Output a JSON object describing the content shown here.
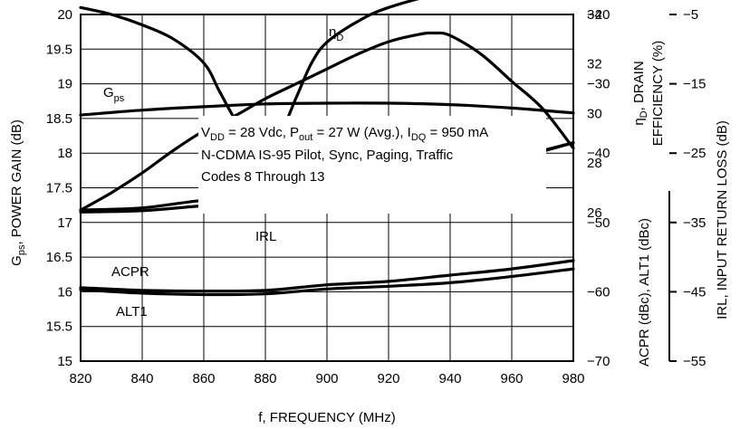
{
  "chart_data": {
    "type": "line",
    "xlabel": "f, FREQUENCY (MHz)",
    "xlim": [
      820,
      980
    ],
    "x_ticks": [
      820,
      840,
      860,
      880,
      900,
      920,
      940,
      960,
      980
    ],
    "grid": true,
    "axes": {
      "left": {
        "label_main": "G",
        "label_sub": "ps",
        "label_rest": ", POWER GAIN (dB)",
        "range": [
          15,
          20
        ],
        "ticks": [
          15,
          15.5,
          16,
          16.5,
          17,
          17.5,
          18,
          18.5,
          19,
          19.5,
          20
        ]
      },
      "right_upper": {
        "label_line1_main": "η",
        "label_line1_sub": "D",
        "label_line1_rest": ", DRAIN",
        "label_line2": "EFFICIENCY (%)",
        "range": [
          20,
          34
        ],
        "ticks": [
          26,
          28,
          30,
          32,
          34
        ]
      },
      "right_lower": {
        "label": "ACPR (dBc), ALT1 (dBc)",
        "range": [
          -70,
          -20
        ],
        "ticks": [
          -20,
          -30,
          -40,
          -50,
          -60,
          -70
        ]
      },
      "right_outer": {
        "label": "IRL, INPUT RETURN LOSS (dB)",
        "range": [
          -55,
          -5
        ],
        "ticks": [
          -5,
          -15,
          -25,
          -35,
          -45,
          -55
        ]
      }
    },
    "series": [
      {
        "name": "G",
        "name_sub": "ps",
        "axis": "left",
        "x": [
          820,
          840,
          860,
          880,
          900,
          920,
          940,
          960,
          980
        ],
        "y": [
          18.55,
          18.62,
          18.67,
          18.71,
          18.72,
          18.72,
          18.7,
          18.65,
          18.58
        ]
      },
      {
        "name": "η",
        "name_sub": "D",
        "axis": "right_upper",
        "x": [
          820,
          830,
          840,
          850,
          860,
          870,
          880,
          890,
          900,
          910,
          920,
          930,
          935,
          940,
          950,
          960,
          970,
          980
        ],
        "y": [
          26.1,
          26.8,
          27.6,
          28.5,
          29.3,
          29.9,
          30.6,
          31.2,
          31.8,
          32.4,
          32.9,
          33.2,
          33.25,
          33.15,
          32.4,
          31.3,
          30.2,
          28.6
        ]
      },
      {
        "name": "IRL",
        "axis": "right_lower",
        "x": [
          820,
          830,
          840,
          850,
          860,
          865,
          870,
          875,
          880,
          885,
          890,
          895,
          900,
          910,
          920,
          940,
          960,
          980
        ],
        "y": [
          -19.0,
          -20.0,
          -21.5,
          -23.5,
          -27.0,
          -31.0,
          -35.0,
          -37.8,
          -38.8,
          -37.0,
          -32.0,
          -27.0,
          -24.0,
          -21.0,
          -19.0,
          -16.6,
          -15.0,
          -14.5
        ]
      },
      {
        "name": "ACPR",
        "axis": "right_lower",
        "x": [
          820,
          840,
          860,
          880,
          900,
          920,
          940,
          960,
          980
        ],
        "y": [
          -48.5,
          -48.3,
          -47.6,
          -47.2,
          -46.5,
          -44.8,
          -42.9,
          -40.9,
          -38.5
        ]
      },
      {
        "name": "ACPR",
        "axis": "right_lower",
        "x": [
          820,
          840,
          860,
          880,
          900,
          920,
          940,
          960,
          980
        ],
        "y": [
          -48.2,
          -47.9,
          -46.8,
          -46.4,
          -45.8,
          -44.2,
          -42.5,
          -40.7,
          -38.5
        ]
      },
      {
        "name": "ALT1",
        "axis": "right_lower",
        "x": [
          820,
          840,
          860,
          880,
          900,
          920,
          940,
          960,
          980
        ],
        "y": [
          -59.4,
          -59.8,
          -59.9,
          -59.8,
          -59.0,
          -58.5,
          -57.6,
          -56.7,
          -55.5
        ]
      },
      {
        "name": "ALT1",
        "axis": "right_lower",
        "x": [
          820,
          840,
          860,
          880,
          900,
          920,
          940,
          960,
          980
        ],
        "y": [
          -59.7,
          -60.2,
          -60.4,
          -60.3,
          -59.6,
          -59.2,
          -58.7,
          -57.8,
          -56.7
        ]
      }
    ],
    "annotations": {
      "line1": {
        "parts": [
          {
            "t": "V"
          },
          {
            "t": "DD",
            "sub": true
          },
          {
            "t": " = 28 Vdc, P"
          },
          {
            "t": "out",
            "sub": true
          },
          {
            "t": " = 27 W (Avg.), I"
          },
          {
            "t": "DQ",
            "sub": true
          },
          {
            "t": " = 950 mA"
          }
        ]
      },
      "line2": "N-CDMA IS-95 Pilot, Sync, Paging, Traffic",
      "line3": "Codes 8 Through 13"
    }
  }
}
